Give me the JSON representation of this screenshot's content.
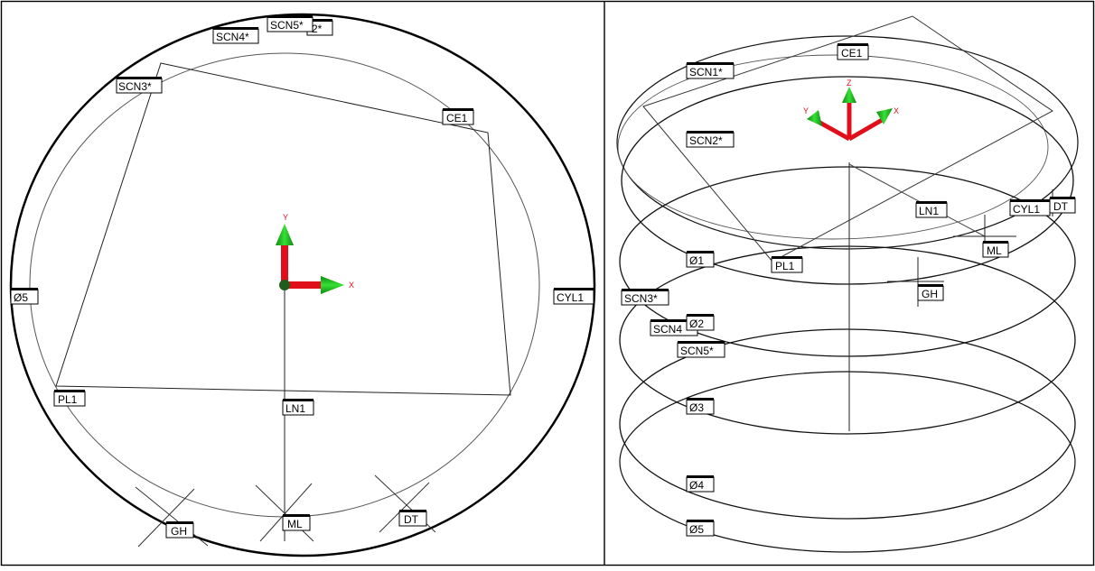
{
  "views": {
    "top": {
      "labels": {
        "scn4": "SCN4*",
        "scn5": "SCN5*",
        "scn2": "2*",
        "scn3": "SCN3*",
        "ce1": "CE1",
        "d5": "Ø5",
        "cyl1": "CYL1",
        "pl1": "PL1",
        "ln1": "LN1",
        "gh": "GH",
        "ml": "ML",
        "dt": "DT"
      },
      "axes": {
        "x": "X",
        "y": "Y"
      }
    },
    "iso": {
      "labels": {
        "scn1": "SCN1*",
        "ce1": "CE1",
        "scn2": "SCN2*",
        "ln1": "LN1",
        "cyl1": "CYL1",
        "dt": "DT",
        "ml": "ML",
        "d1": "Ø1",
        "pl1": "PL1",
        "gh": "GH",
        "scn3": "SCN3*",
        "scn4": "SCN4",
        "d2": "Ø2",
        "scn5": "SCN5*",
        "d3": "Ø3",
        "d4": "Ø4",
        "d5": "Ø5"
      },
      "axes": {
        "x": "X",
        "y": "Y",
        "z": "Z"
      }
    }
  },
  "colors": {
    "axis_red": "#e0101a",
    "axis_green": "#1fc41f",
    "origin_dark_green": "#1f5d1f",
    "line": "#000000",
    "thin_line": "#444444"
  }
}
